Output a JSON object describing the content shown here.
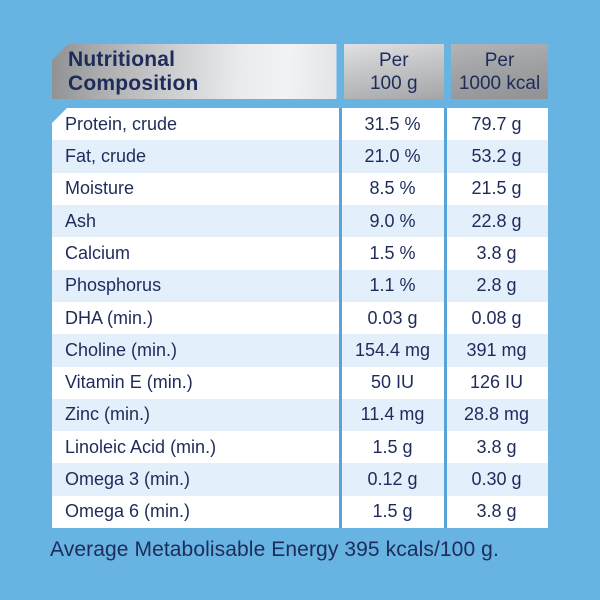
{
  "table": {
    "header": {
      "title_line1": "Nutritional",
      "title_line2": "Composition",
      "col_100g_line1": "Per",
      "col_100g_line2": "100 g",
      "col_1000kcal_line1": "Per",
      "col_1000kcal_line2": "1000 kcal"
    },
    "rows": [
      {
        "label": "Protein, crude",
        "per100g": "31.5 %",
        "per1000kcal": "79.7 g"
      },
      {
        "label": "Fat, crude",
        "per100g": "21.0 %",
        "per1000kcal": "53.2 g"
      },
      {
        "label": "Moisture",
        "per100g": "8.5 %",
        "per1000kcal": "21.5 g"
      },
      {
        "label": "Ash",
        "per100g": "9.0 %",
        "per1000kcal": "22.8 g"
      },
      {
        "label": "Calcium",
        "per100g": "1.5 %",
        "per1000kcal": "3.8 g"
      },
      {
        "label": "Phosphorus",
        "per100g": "1.1 %",
        "per1000kcal": "2.8 g"
      },
      {
        "label": "DHA (min.)",
        "per100g": "0.03 g",
        "per1000kcal": "0.08 g"
      },
      {
        "label": "Choline (min.)",
        "per100g": "154.4 mg",
        "per1000kcal": "391 mg"
      },
      {
        "label": "Vitamin E (min.)",
        "per100g": "50 IU",
        "per1000kcal": "126 IU"
      },
      {
        "label": "Zinc (min.)",
        "per100g": "11.4 mg",
        "per1000kcal": "28.8 mg"
      },
      {
        "label": "Linoleic Acid (min.)",
        "per100g": "1.5 g",
        "per1000kcal": "3.8 g"
      },
      {
        "label": "Omega 3 (min.)",
        "per100g": "0.12 g",
        "per1000kcal": "0.30 g"
      },
      {
        "label": "Omega 6 (min.)",
        "per100g": "1.5 g",
        "per1000kcal": "3.8 g"
      }
    ]
  },
  "footer": {
    "text": "Average Metabolisable Energy 395 kcals/100 g."
  },
  "colors": {
    "background": "#67b3e2",
    "text_navy": "#1e2b5b",
    "row_white": "#ffffff",
    "row_alt_blue": "#e3effa",
    "column_separator": "#56a4da",
    "header_metallic_light": "#f2f3f4",
    "header_metallic_dark": "#8f9193"
  }
}
